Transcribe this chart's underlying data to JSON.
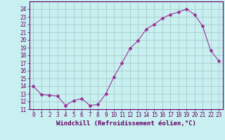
{
  "x": [
    0,
    1,
    2,
    3,
    4,
    5,
    6,
    7,
    8,
    9,
    10,
    11,
    12,
    13,
    14,
    15,
    16,
    17,
    18,
    19,
    20,
    21,
    22,
    23
  ],
  "y": [
    14.0,
    12.9,
    12.8,
    12.7,
    11.5,
    12.1,
    12.4,
    11.5,
    11.6,
    13.0,
    15.2,
    17.0,
    18.9,
    19.9,
    21.4,
    22.0,
    22.8,
    23.3,
    23.6,
    24.0,
    23.3,
    21.8,
    18.6,
    17.3
  ],
  "line_color": "#993399",
  "marker": "D",
  "marker_size": 2,
  "bg_color": "#c8f0f0",
  "grid_color": "#aacccc",
  "xlabel": "Windchill (Refroidissement éolien,°C)",
  "ylim": [
    11,
    25
  ],
  "xlim": [
    -0.5,
    23.5
  ],
  "yticks": [
    11,
    12,
    13,
    14,
    15,
    16,
    17,
    18,
    19,
    20,
    21,
    22,
    23,
    24
  ],
  "xticks": [
    0,
    1,
    2,
    3,
    4,
    5,
    6,
    7,
    8,
    9,
    10,
    11,
    12,
    13,
    14,
    15,
    16,
    17,
    18,
    19,
    20,
    21,
    22,
    23
  ],
  "tick_label_color": "#660066",
  "axis_color": "#660066",
  "xlabel_color": "#660066",
  "fontsize_ticks": 5.5,
  "fontsize_xlabel": 6.5
}
